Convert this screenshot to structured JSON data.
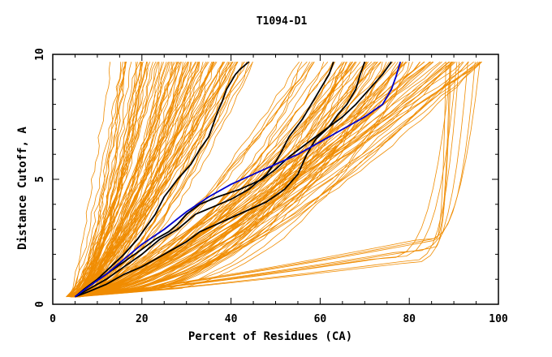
{
  "chart_data": {
    "type": "line",
    "title": "T1094-D1",
    "xlabel": "Percent of Residues (CA)",
    "ylabel": "Distance Cutoff, A",
    "xlim": [
      0,
      100
    ],
    "ylim": [
      0,
      10
    ],
    "x_ticks": [
      0,
      20,
      40,
      60,
      80,
      100
    ],
    "y_ticks": [
      0,
      5,
      10
    ],
    "colors": {
      "bundle": "#f08c00",
      "highlight_black": "#000000",
      "highlight_blue": "#0000cc",
      "frame": "#000000"
    },
    "series": [
      {
        "name": "highlight-black-1",
        "color": "#000000",
        "x": [
          5,
          7,
          10,
          13,
          16,
          19,
          21,
          23,
          25,
          28,
          31,
          33,
          35,
          36,
          37,
          38,
          39,
          40,
          41,
          42,
          44
        ],
        "y": [
          0.3,
          0.6,
          1.0,
          1.5,
          2.0,
          2.6,
          3.1,
          3.6,
          4.3,
          5.0,
          5.6,
          6.2,
          6.7,
          7.2,
          7.7,
          8.1,
          8.6,
          8.9,
          9.2,
          9.4,
          9.7
        ]
      },
      {
        "name": "highlight-black-2",
        "color": "#000000",
        "x": [
          5,
          8,
          12,
          16,
          20,
          24,
          28,
          30,
          32,
          36,
          40,
          44,
          48,
          50,
          51,
          53,
          56,
          58,
          60,
          62,
          63
        ],
        "y": [
          0.3,
          0.6,
          1.0,
          1.5,
          2.0,
          2.6,
          3.0,
          3.3,
          3.6,
          3.9,
          4.2,
          4.6,
          5.2,
          5.7,
          6.0,
          6.7,
          7.4,
          8.0,
          8.6,
          9.2,
          9.7
        ]
      },
      {
        "name": "highlight-black-3",
        "color": "#000000",
        "x": [
          5,
          8,
          12,
          16,
          20,
          24,
          27,
          30,
          33,
          38,
          43,
          48,
          52,
          55,
          57,
          59,
          62,
          64,
          66,
          68,
          69,
          70
        ],
        "y": [
          0.3,
          0.5,
          0.8,
          1.2,
          1.5,
          1.9,
          2.2,
          2.5,
          2.9,
          3.3,
          3.7,
          4.1,
          4.6,
          5.2,
          6.0,
          6.6,
          7.1,
          7.6,
          8.0,
          8.6,
          9.2,
          9.7
        ]
      },
      {
        "name": "highlight-black-4",
        "color": "#000000",
        "x": [
          5,
          8,
          12,
          16,
          20,
          23,
          26,
          28,
          30,
          33,
          37,
          42,
          47,
          50,
          53,
          56,
          59,
          62,
          65,
          68,
          71,
          74,
          76
        ],
        "y": [
          0.3,
          0.7,
          1.2,
          1.7,
          2.2,
          2.6,
          2.9,
          3.2,
          3.6,
          4.0,
          4.3,
          4.6,
          5.0,
          5.4,
          5.9,
          6.3,
          6.7,
          7.1,
          7.5,
          8.0,
          8.6,
          9.2,
          9.7
        ]
      },
      {
        "name": "highlight-blue",
        "color": "#0000cc",
        "x": [
          5,
          8,
          12,
          16,
          20,
          25,
          30,
          35,
          40,
          45,
          50,
          55,
          60,
          65,
          70,
          74,
          76,
          77,
          78
        ],
        "y": [
          0.3,
          0.7,
          1.2,
          1.8,
          2.4,
          3.0,
          3.7,
          4.3,
          4.8,
          5.2,
          5.6,
          6.0,
          6.5,
          7.0,
          7.5,
          8.0,
          8.6,
          9.1,
          9.7
        ]
      }
    ]
  }
}
